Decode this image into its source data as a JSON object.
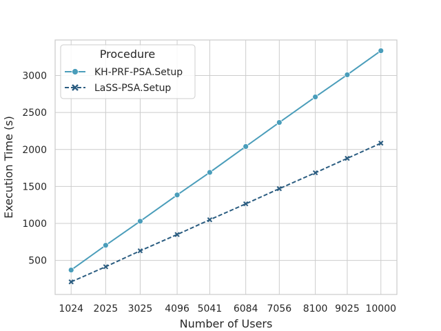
{
  "chart_data": {
    "type": "line",
    "title": "",
    "xlabel": "Number of Users",
    "ylabel": "Execution Time (s)",
    "x": [
      1024,
      2025,
      3025,
      4096,
      5041,
      6084,
      7056,
      8100,
      9025,
      10000
    ],
    "x_tick_labels": [
      "1024",
      "2025",
      "3025",
      "4096",
      "5041",
      "6084",
      "7056",
      "8100",
      "9025",
      "10000"
    ],
    "xlim": [
      560,
      10464
    ],
    "ylim": [
      40,
      3480
    ],
    "y_ticks": [
      500,
      1000,
      1500,
      2000,
      2500,
      3000
    ],
    "y_tick_labels": [
      "500",
      "1000",
      "1500",
      "2000",
      "2500",
      "3000"
    ],
    "grid": true,
    "legend": {
      "title": "Procedure",
      "placement": "top-left"
    },
    "series": [
      {
        "name": "KH-PRF-PSA.Setup",
        "color": "#4a9dba",
        "marker": "circle",
        "line_style": "solid",
        "values": [
          370,
          705,
          1030,
          1385,
          1690,
          2040,
          2365,
          2710,
          3010,
          3335
        ]
      },
      {
        "name": "LaSS-PSA.Setup",
        "color": "#2a5c80",
        "marker": "x",
        "line_style": "dashed",
        "values": [
          210,
          415,
          630,
          850,
          1050,
          1265,
          1470,
          1685,
          1880,
          2085
        ]
      }
    ]
  }
}
